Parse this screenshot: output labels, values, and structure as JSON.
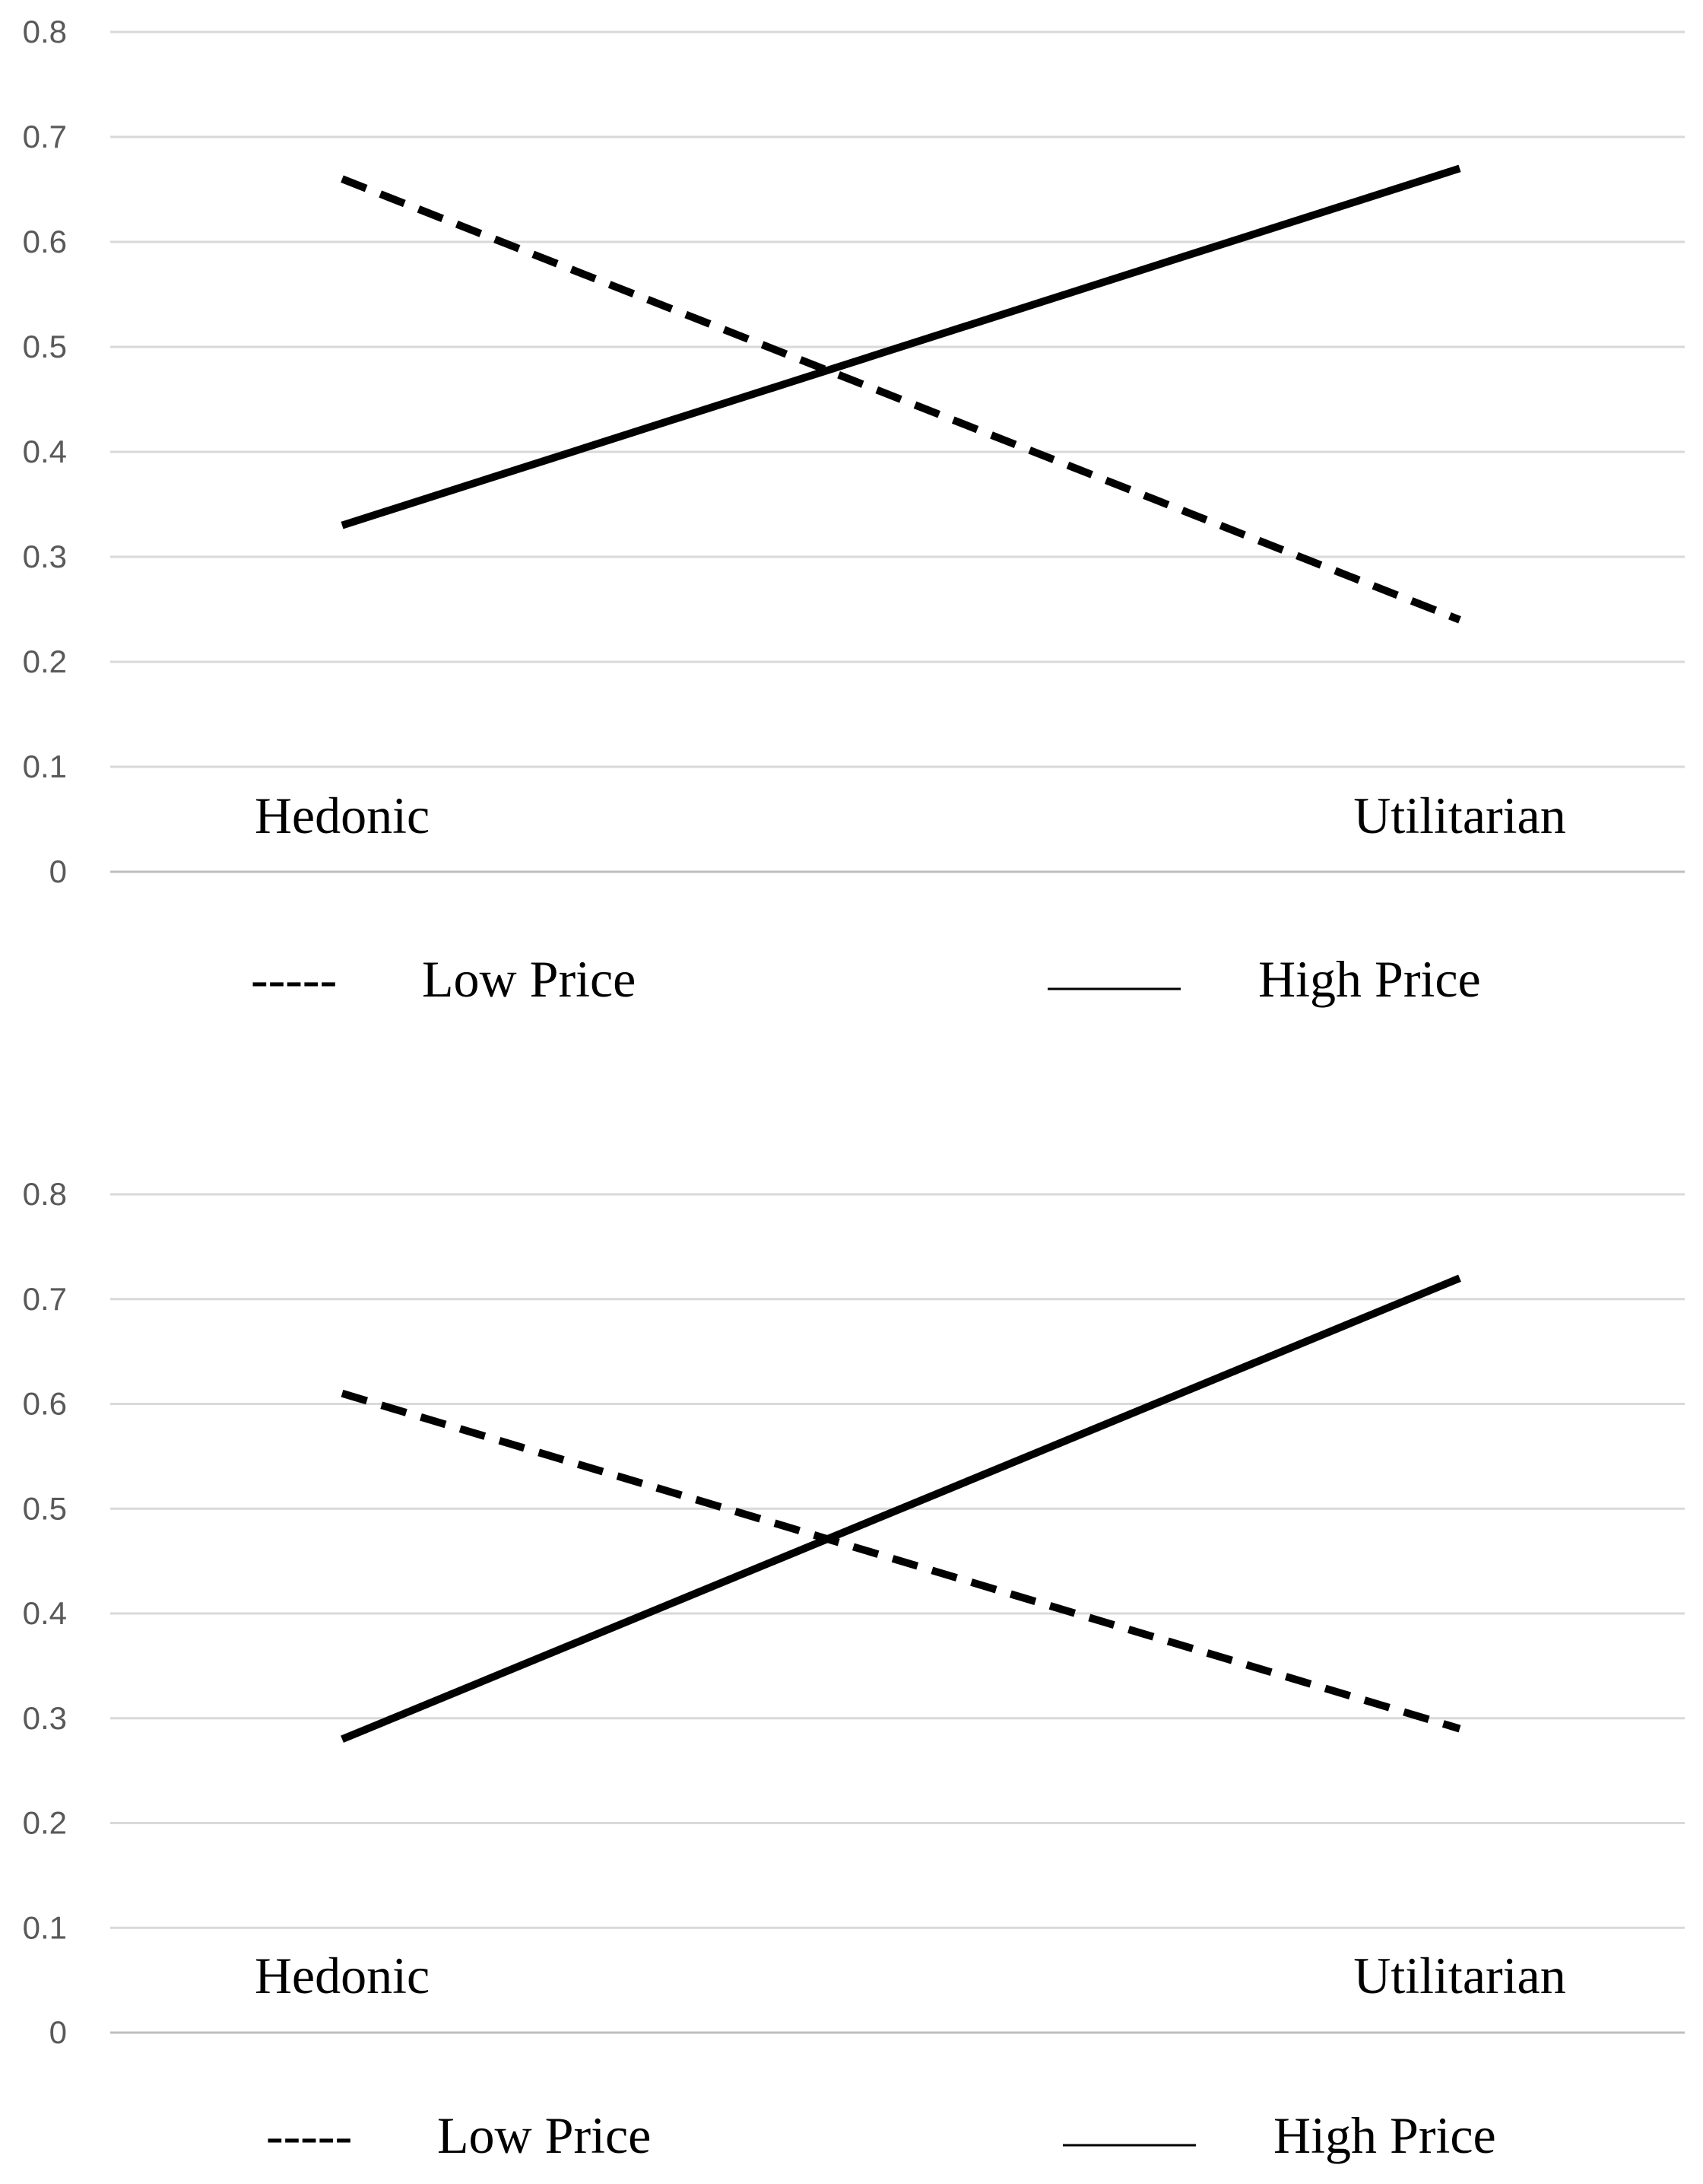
{
  "chart_data": [
    {
      "type": "line",
      "categories": [
        "Hedonic",
        "Utilitarian"
      ],
      "ylim": [
        0,
        0.8
      ],
      "yticks": [
        "0",
        "0.1",
        "0.2",
        "0.3",
        "0.4",
        "0.5",
        "0.6",
        "0.7",
        "0.8"
      ],
      "grid": true,
      "legend_position": "bottom",
      "series": [
        {
          "name": "Low Price",
          "values": [
            0.66,
            0.24
          ],
          "style": "dashed",
          "legend_glyph": "-----"
        },
        {
          "name": "High Price",
          "values": [
            0.33,
            0.67
          ],
          "style": "solid",
          "legend_glyph": ""
        }
      ]
    },
    {
      "type": "line",
      "categories": [
        "Hedonic",
        "Utilitarian"
      ],
      "ylim": [
        0,
        0.8
      ],
      "yticks": [
        "0",
        "0.1",
        "0.2",
        "0.3",
        "0.4",
        "0.5",
        "0.6",
        "0.7",
        "0.8"
      ],
      "grid": true,
      "legend_position": "bottom",
      "series": [
        {
          "name": "Low Price",
          "values": [
            0.61,
            0.29
          ],
          "style": "dashed",
          "legend_glyph": "-----"
        },
        {
          "name": "High Price",
          "values": [
            0.28,
            0.72
          ],
          "style": "solid",
          "legend_glyph": ""
        }
      ]
    }
  ],
  "colors": {
    "line": "#000000",
    "grid": "#d9d9d9",
    "tick_text": "#595959"
  }
}
